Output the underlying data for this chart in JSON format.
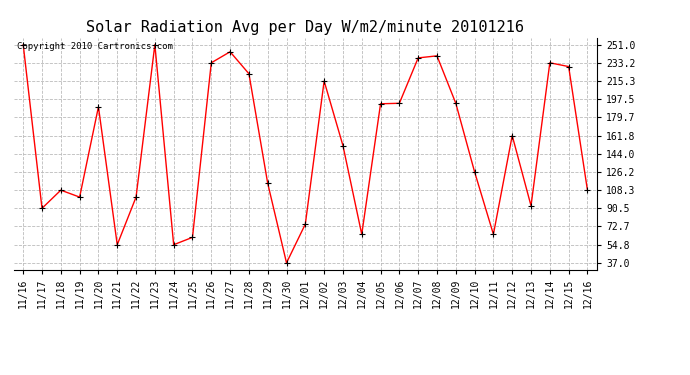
{
  "title": "Solar Radiation Avg per Day W/m2/minute 20101216",
  "copyright": "Copyright 2010 Cartronics.com",
  "labels": [
    "11/16",
    "11/17",
    "11/18",
    "11/19",
    "11/20",
    "11/21",
    "11/22",
    "11/23",
    "11/24",
    "11/25",
    "11/26",
    "11/27",
    "11/28",
    "11/29",
    "11/30",
    "12/01",
    "12/02",
    "12/03",
    "12/04",
    "12/05",
    "12/06",
    "12/07",
    "12/08",
    "12/09",
    "12/10",
    "12/11",
    "12/12",
    "12/13",
    "12/14",
    "12/15",
    "12/16"
  ],
  "values": [
    251.0,
    90.5,
    108.3,
    101.5,
    190.0,
    54.8,
    101.5,
    251.0,
    54.8,
    62.0,
    233.2,
    244.0,
    222.5,
    115.0,
    37.0,
    75.0,
    215.3,
    152.0,
    65.0,
    193.0,
    193.5,
    238.0,
    240.0,
    193.5,
    126.2,
    65.0,
    161.8,
    93.0,
    233.2,
    229.5,
    108.3
  ],
  "yticks": [
    37.0,
    54.8,
    72.7,
    90.5,
    108.3,
    126.2,
    144.0,
    161.8,
    179.7,
    197.5,
    215.3,
    233.2,
    251.0
  ],
  "line_color": "red",
  "marker": "+",
  "marker_size": 5,
  "bg_color": "white",
  "grid_color": "#bbbbbb",
  "title_fontsize": 11,
  "tick_fontsize": 7,
  "copyright_fontsize": 6.5,
  "ylim": [
    30,
    258
  ]
}
